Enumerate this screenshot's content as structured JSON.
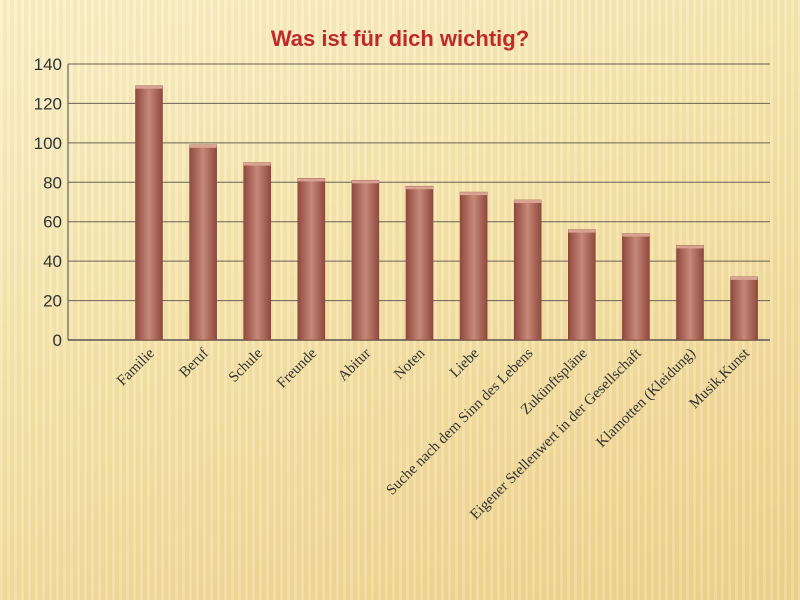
{
  "chart_data": {
    "type": "bar",
    "title": "Was ist für dich wichtig?",
    "xlabel": "",
    "ylabel": "",
    "categories": [
      "Familie",
      "Beruf",
      "Schule",
      "Freunde",
      "Abitur",
      "Noten",
      "Liebe",
      "Suche nach dem Sinn des Lebens",
      "Zukünftspläne",
      "Eigener Stellenwert in der Gesellschaft",
      "Klamotten (Kleidung)",
      "Musik,Kunst"
    ],
    "values": [
      129,
      99,
      90,
      82,
      81,
      78,
      75,
      71,
      56,
      54,
      48,
      32
    ],
    "ylim": [
      0,
      140
    ],
    "yticks": [
      0,
      20,
      40,
      60,
      80,
      100,
      120,
      140
    ],
    "grid": true,
    "bar_color": "#a4594a",
    "title_color": "#c0282a"
  }
}
